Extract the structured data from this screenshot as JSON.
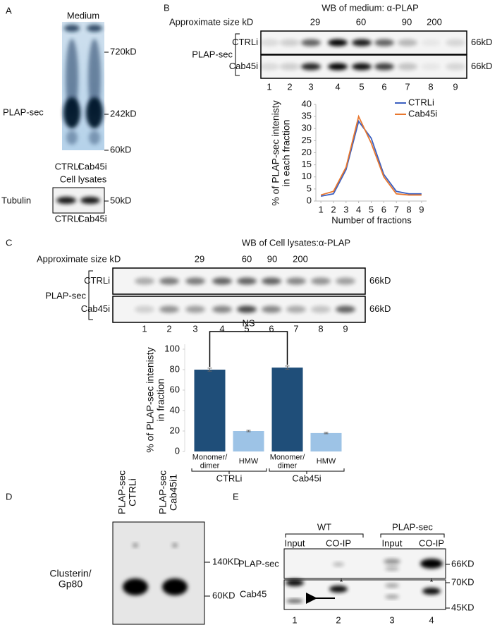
{
  "panels": {
    "A": {
      "label": "A",
      "title": "Medium",
      "markers": [
        "720kD",
        "242kD",
        "60kD"
      ],
      "protein": "PLAP-sec",
      "lanes": [
        "CTRLi",
        "Cab45i"
      ],
      "lysate_title": "Cell lysates",
      "lysate_protein": "Tubulin",
      "lysate_marker": "50kD",
      "lysate_lanes": [
        "CTRLi",
        "Cab45i"
      ]
    },
    "B": {
      "label": "B",
      "title": "WB of medium: α-PLAP",
      "size_title": "Approximate size kD",
      "sizes": [
        "29",
        "60",
        "90",
        "200"
      ],
      "protein": "PLAP-sec",
      "rows": [
        "CTRLi",
        "Cab45i"
      ],
      "markers": [
        "66kD",
        "66kD"
      ],
      "lanes": [
        "1",
        "2",
        "3",
        "4",
        "5",
        "6",
        "7",
        "8",
        "9"
      ]
    },
    "C": {
      "label": "C",
      "title": "WB of Cell lysates:α-PLAP",
      "size_title": "Approximate size kD",
      "sizes": [
        "29",
        "60",
        "90",
        "200"
      ],
      "protein": "PLAP-sec",
      "rows": [
        "CTRLi",
        "Cab45i"
      ],
      "markers": [
        "66kD",
        "66kD"
      ],
      "lanes": [
        "1",
        "2",
        "3",
        "4",
        "5",
        "6",
        "7",
        "8",
        "9"
      ]
    },
    "D": {
      "label": "D",
      "lanes": [
        "PLAP-sec\nCTRLi",
        "PLAP-sec\nCab45i1"
      ],
      "protein": "Clusterin/\nGp80",
      "markers": [
        "140KD",
        "60KD"
      ]
    },
    "E": {
      "label": "E",
      "groups": [
        "WT",
        "PLAP-sec"
      ],
      "lanes_top": [
        "Input",
        "CO-IP",
        "Input",
        "CO-IP"
      ],
      "rows": [
        "PLAP-sec",
        "Cab45"
      ],
      "markers": [
        "66KD",
        "70KD",
        "45KD"
      ],
      "lanes": [
        "1",
        "2",
        "3",
        "4"
      ],
      "asterisks": [
        "*",
        "*"
      ]
    }
  },
  "chart_data": [
    {
      "type": "line",
      "ylabel": "% of PLAP-sec intenisty\nin each fraction",
      "xlabel": "Number of fractions",
      "x": [
        1,
        2,
        3,
        4,
        5,
        6,
        7,
        8,
        9
      ],
      "xlim": [
        0.6,
        9.4
      ],
      "xticks": [
        1,
        2,
        3,
        4,
        5,
        6,
        7,
        8,
        9
      ],
      "ylim": [
        0,
        40
      ],
      "yticks": [
        0,
        5,
        10,
        15,
        20,
        25,
        30,
        35,
        40
      ],
      "series": [
        {
          "name": "CTRLi",
          "color": "#3b5fc0",
          "values": [
            2,
            3,
            13,
            33,
            26,
            11,
            4,
            3,
            3
          ]
        },
        {
          "name": "Cab45i",
          "color": "#e8772e",
          "values": [
            2.5,
            4,
            14,
            35,
            24,
            10,
            3,
            2.5,
            2.5
          ]
        }
      ]
    },
    {
      "type": "bar",
      "ylabel": "% of PLAP-sec intenisty\nin fraction",
      "categories": [
        "Monomer/\ndimer",
        "HMW",
        "Monomer/\ndimer",
        "HMW"
      ],
      "values": [
        80,
        20,
        82,
        18
      ],
      "errors": [
        1.5,
        0.7,
        1.5,
        0.7
      ],
      "colors": [
        "#1f4e79",
        "#9dc3e6",
        "#1f4e79",
        "#9dc3e6"
      ],
      "groups": [
        "CTRLi",
        "Cab45i"
      ],
      "annotation": "NS",
      "ylim": [
        0,
        100
      ],
      "yticks": [
        0,
        20,
        40,
        60,
        80,
        100
      ]
    }
  ]
}
